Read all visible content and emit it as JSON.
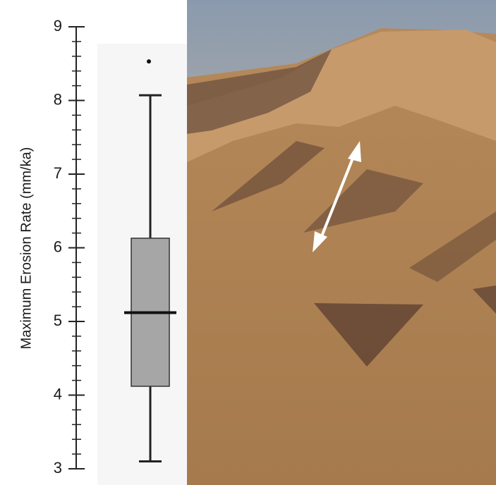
{
  "chart_data": {
    "type": "box",
    "y_label": "Maximum Erosion Rate (mm/ka)",
    "ylim": [
      3,
      9
    ],
    "yticks": [
      3,
      4,
      5,
      6,
      7,
      8,
      9
    ],
    "yminorticks": [
      3.2,
      3.4,
      3.6,
      3.8,
      4.2,
      4.4,
      4.6,
      4.8,
      5.2,
      5.4,
      5.6,
      5.8,
      6.2,
      6.4,
      6.6,
      6.8,
      7.2,
      7.4,
      7.6,
      7.8,
      8.2,
      8.4,
      8.6,
      8.8
    ],
    "whisker_low": 3.1,
    "q1": 4.12,
    "median": 5.12,
    "q3": 6.13,
    "whisker_high": 8.07,
    "outliers": [
      8.53
    ],
    "color": "#a6a6a6"
  }
}
